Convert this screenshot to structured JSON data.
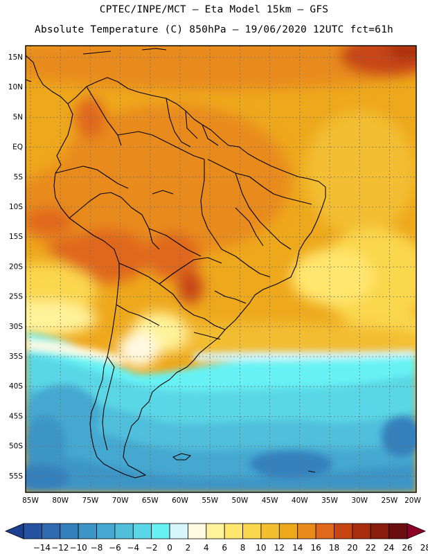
{
  "header": {
    "title_line1": "CPTEC/INPE/MCT –  Eta Model 15km – GFS",
    "title_line2": "Absolute Temperature (C) 850hPa – 19/06/2020 12UTC fct=61h"
  },
  "axes": {
    "lat_labels": [
      "15N",
      "10N",
      "5N",
      "EQ",
      "5S",
      "10S",
      "15S",
      "20S",
      "25S",
      "30S",
      "35S",
      "40S",
      "45S",
      "50S",
      "55S"
    ],
    "lon_labels": [
      "85W",
      "80W",
      "75W",
      "70W",
      "65W",
      "60W",
      "55W",
      "50W",
      "45W",
      "40W",
      "35W",
      "30W",
      "25W",
      "20W"
    ]
  },
  "colorbar": {
    "labels": [
      "-14",
      "-12",
      "-10",
      "-8",
      "-6",
      "-4",
      "-2",
      "0",
      "2",
      "4",
      "6",
      "8",
      "10",
      "12",
      "14",
      "16",
      "18",
      "20",
      "22",
      "24",
      "26",
      "28"
    ],
    "colors": [
      "#1c3f8f",
      "#2552a1",
      "#2e6bb0",
      "#3581bd",
      "#3c95c6",
      "#45a8d0",
      "#4fbfdc",
      "#5ad7e6",
      "#66f2f4",
      "#d7f6fb",
      "#fff9e2",
      "#fff29a",
      "#ffe66e",
      "#fbd74e",
      "#f3be30",
      "#eea81c",
      "#e98b1a",
      "#e0681b",
      "#c74513",
      "#a92e10",
      "#8a1c0e",
      "#6b0e10",
      "#8e0028"
    ]
  }
}
